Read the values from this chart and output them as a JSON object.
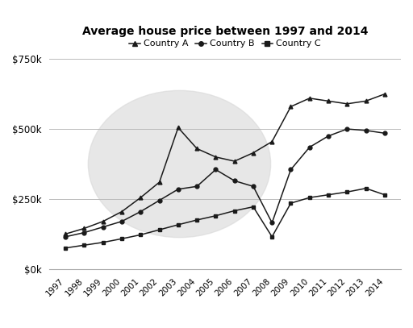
{
  "title": "Average house price between 1997 and 2014",
  "years": [
    1997,
    1998,
    1999,
    2000,
    2001,
    2002,
    2003,
    2004,
    2005,
    2006,
    2007,
    2008,
    2009,
    2010,
    2011,
    2012,
    2013,
    2014
  ],
  "country_a": [
    125000,
    145000,
    170000,
    205000,
    255000,
    310000,
    505000,
    430000,
    400000,
    385000,
    415000,
    455000,
    580000,
    610000,
    600000,
    590000,
    600000,
    625000
  ],
  "country_b": [
    115000,
    130000,
    150000,
    170000,
    205000,
    245000,
    285000,
    295000,
    355000,
    315000,
    295000,
    165000,
    355000,
    435000,
    475000,
    500000,
    495000,
    485000
  ],
  "country_c": [
    75000,
    85000,
    95000,
    108000,
    122000,
    140000,
    158000,
    175000,
    190000,
    208000,
    222000,
    115000,
    235000,
    255000,
    265000,
    275000,
    288000,
    265000
  ],
  "country_a_label": "Country A",
  "country_b_label": "Country B",
  "country_c_label": "Country C",
  "line_color": "#1a1a1a",
  "ylim": [
    0,
    750000
  ],
  "yticks": [
    0,
    250000,
    500000,
    750000
  ],
  "background_color": "#ffffff",
  "watermark_color": "#d8d8d8"
}
